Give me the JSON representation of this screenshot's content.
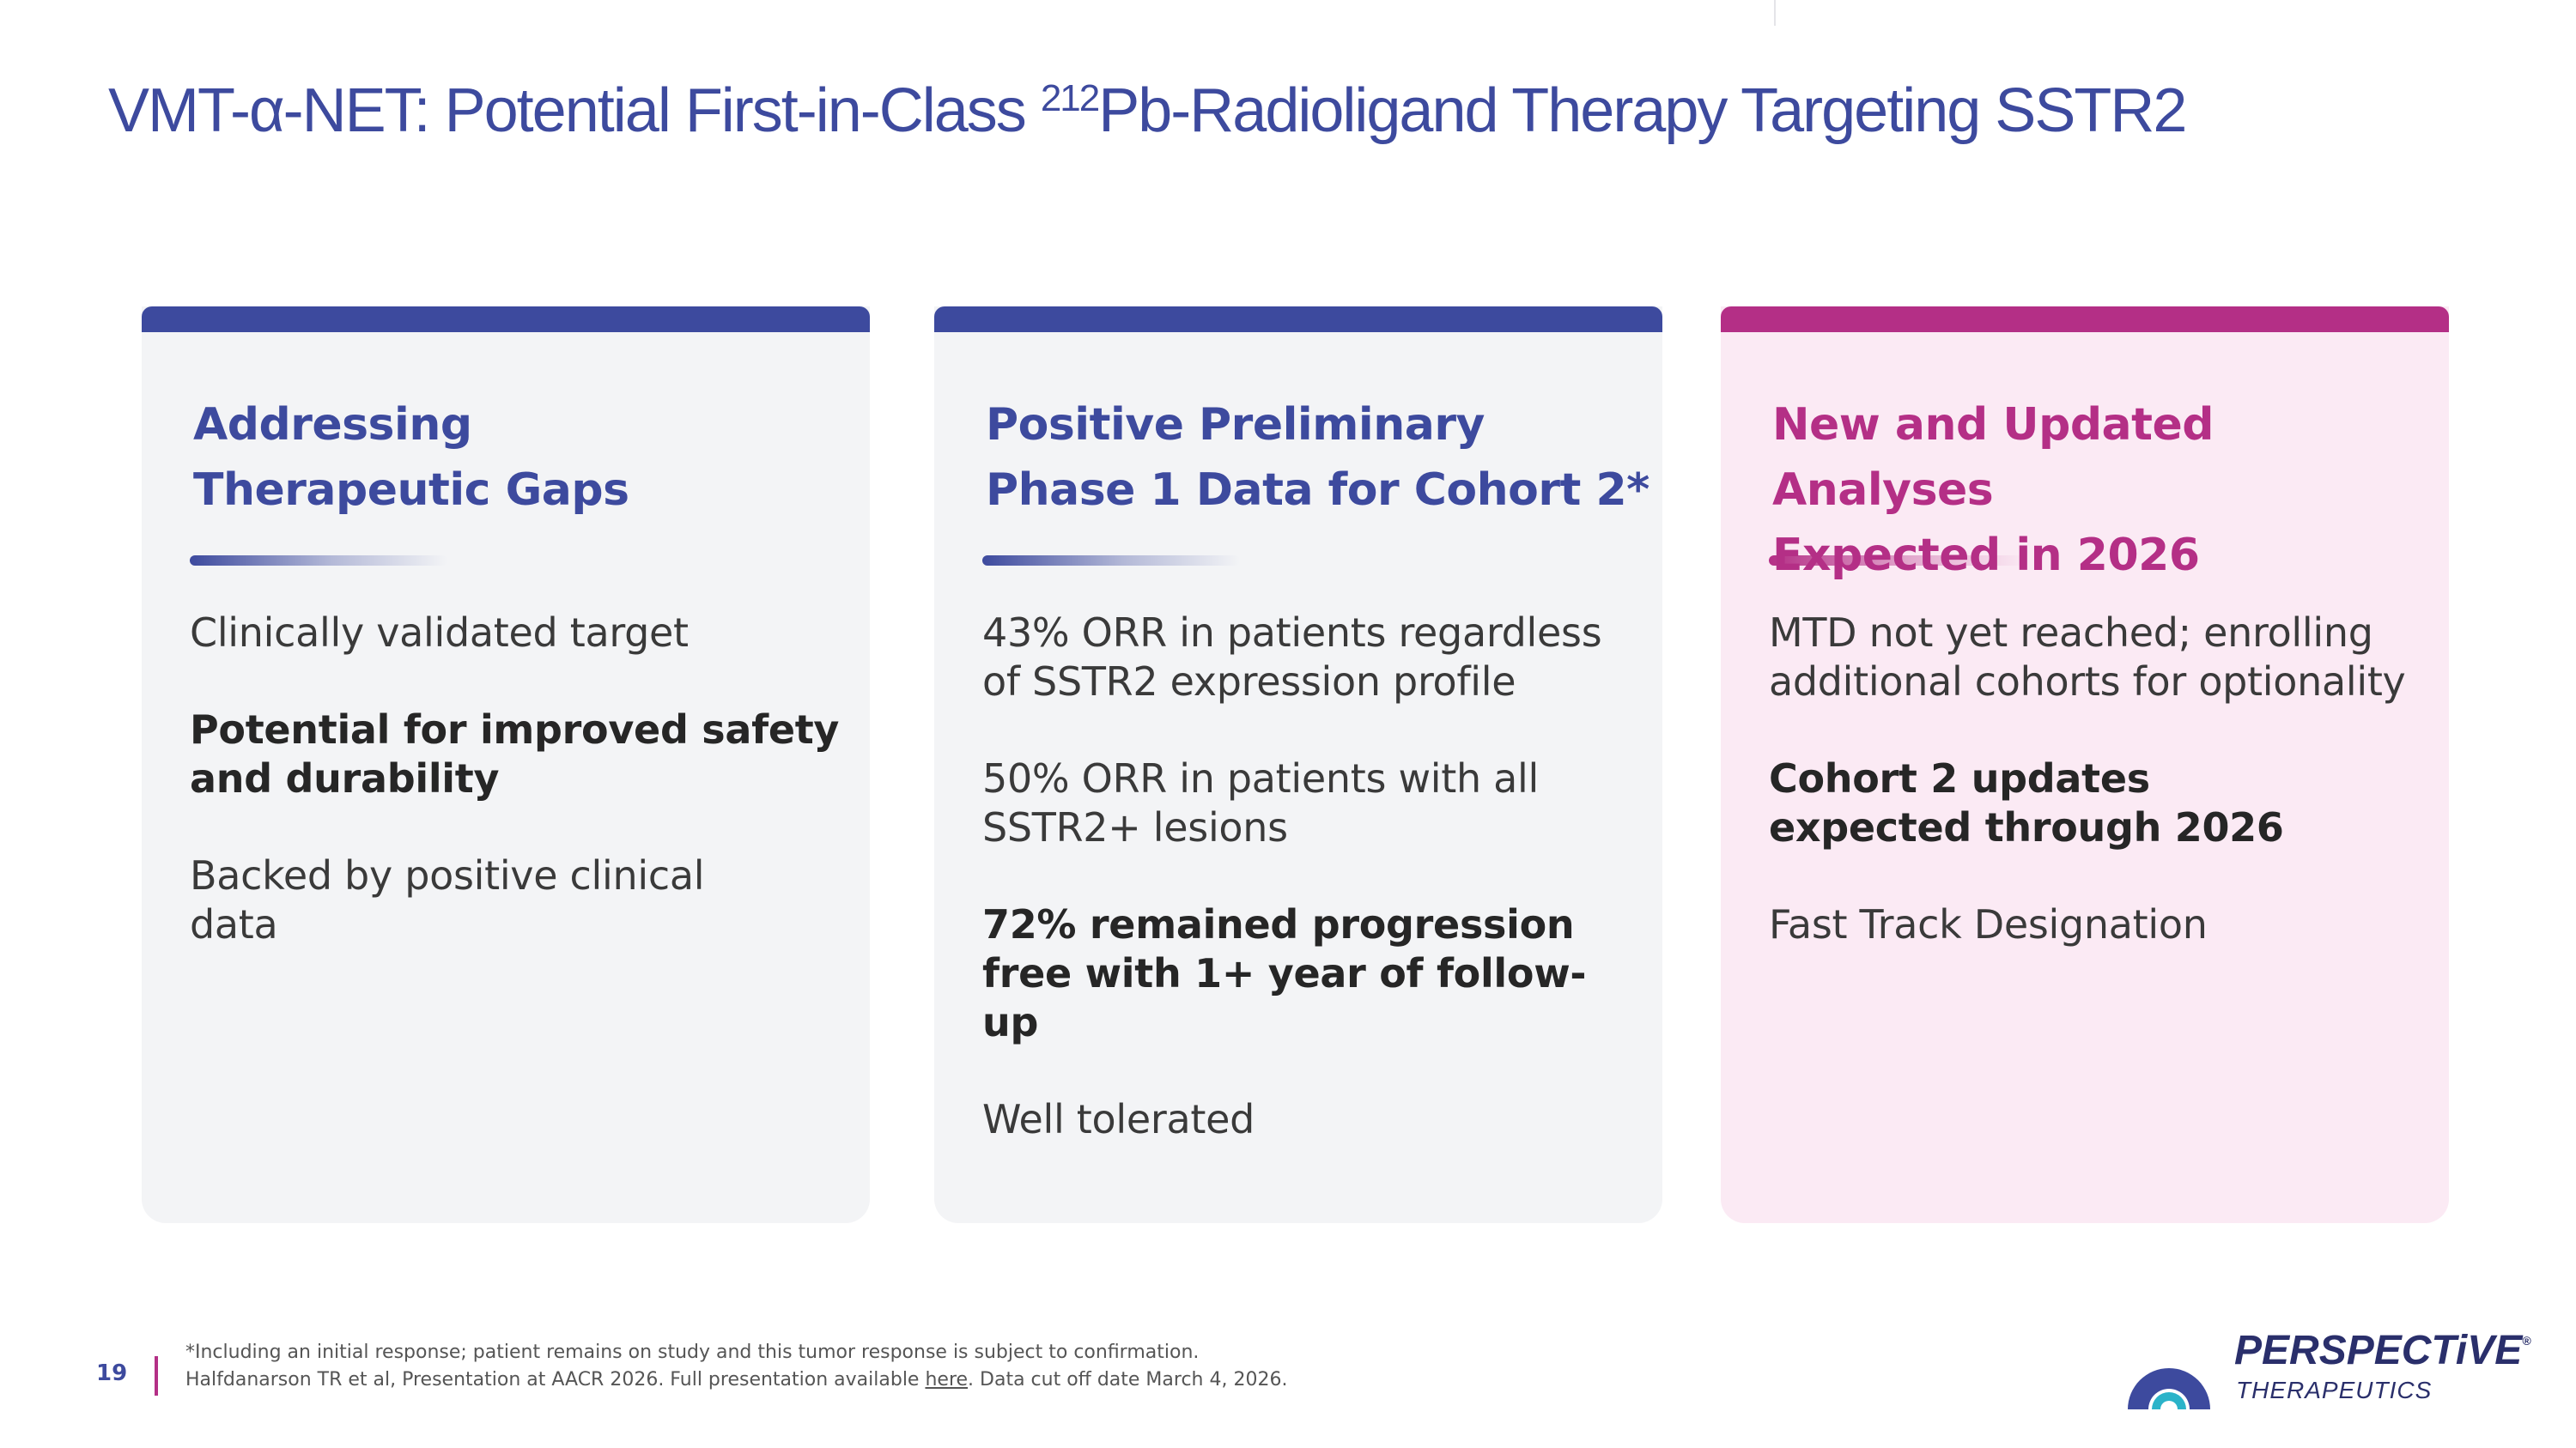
{
  "title": {
    "pre": "VMT-α-NET:  Potential First-in-Class ",
    "superscript": "212",
    "post": "Pb-Radioligand Therapy Targeting SSTR2"
  },
  "colors": {
    "navy": "#3d4a9e",
    "magenta": "#b42f86",
    "card_bg": "#f3f4f6",
    "pink_card_bg": "#fbeaf4"
  },
  "cards": [
    {
      "heading_line1": "Addressing",
      "heading_line2": "Therapeutic Gaps",
      "items": [
        "Clinically validated target",
        "Potential for improved safety and durability",
        "Backed by positive clinical data"
      ]
    },
    {
      "heading_line1": "Positive Preliminary",
      "heading_line2": "Phase 1 Data for Cohort 2*",
      "items": [
        "43% ORR in patients regardless of SSTR2 expression profile",
        "50% ORR in patients with all SSTR2+ lesions",
        "72% remained progression free with 1+ year of follow-up",
        "Well tolerated"
      ]
    },
    {
      "heading_line1": "New and Updated Analyses",
      "heading_line2": "Expected in 2026",
      "items": [
        "MTD not yet reached; enrolling additional cohorts for optionality",
        "Cohort 2 updates expected through 2026",
        "Fast Track Designation"
      ]
    }
  ],
  "footer": {
    "page_number": "19",
    "note1": "*Including an initial response; patient remains on study and this tumor response is subject to confirmation.",
    "note2_pre": "Halfdanarson TR et al, Presentation at AACR 2026. Full presentation available ",
    "note2_link": "here",
    "note2_post": ". Data cut off date March 4, 2026."
  },
  "logo": {
    "name": "PERSPECTiVE",
    "registered": "®",
    "tagline": "THERAPEUTICS"
  }
}
